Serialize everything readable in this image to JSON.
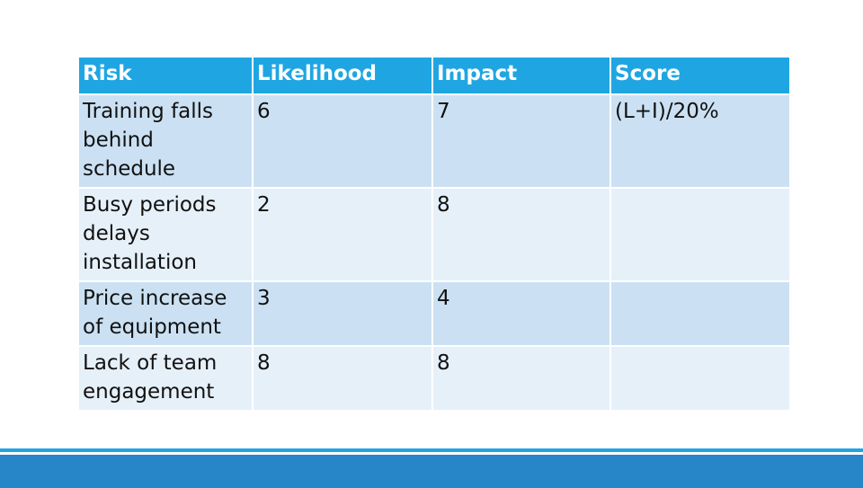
{
  "table": {
    "headers": [
      "Risk",
      "Likelihood",
      "Impact",
      "Score"
    ],
    "rows": [
      [
        "Training falls behind schedule",
        "6",
        "7",
        "(L+I)/20%"
      ],
      [
        "Busy periods delays installation",
        "2",
        "8",
        ""
      ],
      [
        "Price increase of equipment",
        "3",
        "4",
        ""
      ],
      [
        "Lack of team engagement",
        "8",
        "8",
        ""
      ]
    ]
  },
  "colors": {
    "header_bg": "#1fa6e2",
    "row_dark": "#cbe1f3",
    "row_light": "#e6f0f9",
    "footer_stripe": "#1fa6e2",
    "footer_band": "#2786c8"
  }
}
